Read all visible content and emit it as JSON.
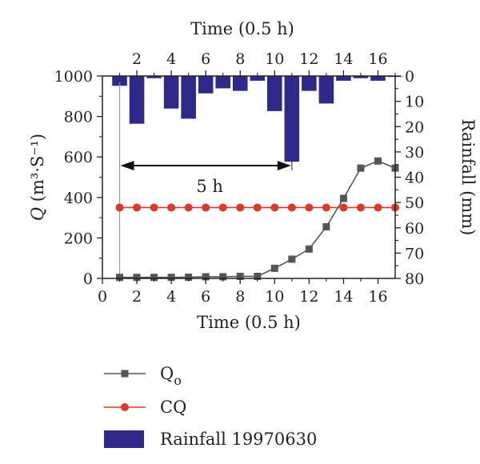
{
  "chart_data": {
    "type": "line",
    "x_axis": {
      "label": "Time (0.5 h)",
      "range": [
        0,
        17
      ],
      "ticks": [
        0,
        2,
        4,
        6,
        8,
        10,
        12,
        14,
        16
      ]
    },
    "top_axis": {
      "label": "Time (0.5 h)",
      "range": [
        0,
        17
      ],
      "ticks": [
        2,
        4,
        6,
        8,
        10,
        12,
        14,
        16
      ]
    },
    "y_axis_left": {
      "label_italic": "Q",
      "label_rest": " (m³·S⁻¹)",
      "range": [
        0,
        1000
      ],
      "ticks": [
        0,
        200,
        400,
        600,
        800,
        1000
      ]
    },
    "y_axis_right": {
      "label": "Rainfall (mm)",
      "range": [
        0,
        80
      ],
      "inverted": true,
      "ticks": [
        0,
        10,
        20,
        30,
        40,
        50,
        60,
        70,
        80
      ]
    },
    "series": [
      {
        "name": "Q",
        "name_sub": "o",
        "kind": "line",
        "marker": "square",
        "color": "#555555",
        "x": [
          1,
          2,
          3,
          4,
          5,
          6,
          7,
          8,
          9,
          10,
          11,
          12,
          13,
          14,
          15,
          16,
          17
        ],
        "values": [
          5,
          5,
          5,
          5,
          6,
          8,
          8,
          10,
          10,
          50,
          95,
          145,
          255,
          395,
          545,
          580,
          545
        ]
      },
      {
        "name": "CQ",
        "kind": "line",
        "marker": "circle",
        "color": "#d93a2b",
        "x": [
          1,
          2,
          3,
          4,
          5,
          6,
          7,
          8,
          9,
          10,
          11,
          12,
          13,
          14,
          15,
          16,
          17
        ],
        "values": [
          350,
          350,
          350,
          350,
          350,
          350,
          350,
          350,
          350,
          350,
          350,
          350,
          350,
          350,
          350,
          350,
          350
        ]
      },
      {
        "name": "Rainfall 19970630",
        "kind": "bar",
        "axis": "right",
        "color": "#2e2a8a",
        "x": [
          1,
          2,
          3,
          4,
          5,
          6,
          7,
          8,
          9,
          10,
          11,
          12,
          13,
          14,
          15,
          16,
          17
        ],
        "values": [
          4,
          19,
          1,
          13,
          17,
          7,
          5,
          6,
          2,
          14,
          34,
          6,
          11,
          2,
          1,
          2,
          0.5
        ]
      }
    ],
    "annotation": {
      "text": "5 h",
      "from_x": 1,
      "to_x": 11
    },
    "legend_position": "bottom"
  }
}
